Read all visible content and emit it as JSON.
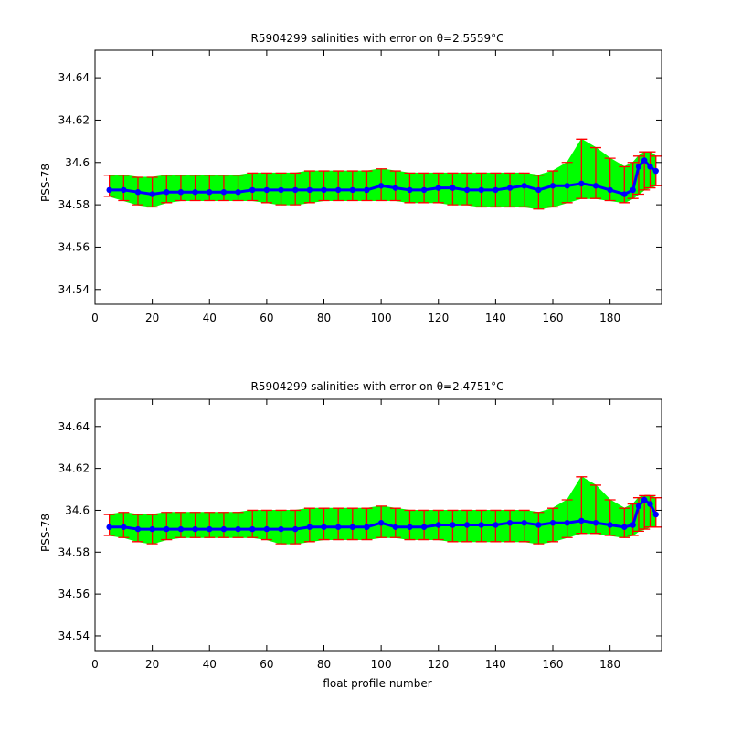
{
  "chart_data": [
    {
      "type": "line",
      "title": "R5904299 salinities with error on θ=2.5559°C",
      "xlabel": "",
      "ylabel": "PSS-78",
      "xlim": [
        0,
        198
      ],
      "ylim": [
        34.533,
        34.653
      ],
      "xticks": [
        0,
        20,
        40,
        60,
        80,
        100,
        120,
        140,
        160,
        180
      ],
      "yticks": [
        "34.54",
        "34.56",
        "34.58",
        "34.6",
        "34.62",
        "34.64"
      ],
      "series_colors": {
        "envelope": "#00ff00",
        "errorbars": "#ff0000",
        "mean": "#0000ff"
      },
      "x": [
        5,
        10,
        15,
        20,
        25,
        30,
        35,
        40,
        45,
        50,
        55,
        60,
        65,
        70,
        75,
        80,
        85,
        90,
        95,
        100,
        105,
        110,
        115,
        120,
        125,
        130,
        135,
        140,
        145,
        150,
        155,
        160,
        165,
        170,
        175,
        180,
        185,
        188,
        190,
        192,
        194,
        196
      ],
      "series": [
        {
          "values": [
            34.587,
            34.587,
            34.586,
            34.585,
            34.586,
            34.586,
            34.586,
            34.586,
            34.586,
            34.586,
            34.587,
            34.587,
            34.587,
            34.587,
            34.587,
            34.587,
            34.587,
            34.587,
            34.587,
            34.589,
            34.588,
            34.587,
            34.587,
            34.588,
            34.588,
            34.587,
            34.587,
            34.587,
            34.588,
            34.589,
            34.587,
            34.589,
            34.589,
            34.59,
            34.589,
            34.587,
            34.585,
            34.587,
            34.598,
            34.601,
            34.598,
            34.596
          ]
        },
        {
          "values": [
            34.584,
            34.582,
            34.58,
            34.579,
            34.581,
            34.582,
            34.582,
            34.582,
            34.582,
            34.582,
            34.582,
            34.581,
            34.58,
            34.58,
            34.581,
            34.582,
            34.582,
            34.582,
            34.582,
            34.582,
            34.582,
            34.581,
            34.581,
            34.581,
            34.58,
            34.58,
            34.579,
            34.579,
            34.579,
            34.579,
            34.578,
            34.579,
            34.581,
            34.583,
            34.583,
            34.582,
            34.581,
            34.583,
            34.585,
            34.587,
            34.588,
            34.589
          ]
        },
        {
          "values": [
            34.594,
            34.594,
            34.593,
            34.593,
            34.594,
            34.594,
            34.594,
            34.594,
            34.594,
            34.594,
            34.595,
            34.595,
            34.595,
            34.595,
            34.596,
            34.596,
            34.596,
            34.596,
            34.596,
            34.597,
            34.596,
            34.595,
            34.595,
            34.595,
            34.595,
            34.595,
            34.595,
            34.595,
            34.595,
            34.595,
            34.594,
            34.596,
            34.6,
            34.611,
            34.607,
            34.602,
            34.598,
            34.6,
            34.603,
            34.605,
            34.605,
            34.603
          ]
        }
      ]
    },
    {
      "type": "line",
      "title": "R5904299 salinities with error on θ=2.4751°C",
      "xlabel": "float profile number",
      "ylabel": "PSS-78",
      "xlim": [
        0,
        198
      ],
      "ylim": [
        34.533,
        34.653
      ],
      "xticks": [
        0,
        20,
        40,
        60,
        80,
        100,
        120,
        140,
        160,
        180
      ],
      "yticks": [
        "34.54",
        "34.56",
        "34.58",
        "34.6",
        "34.62",
        "34.64"
      ],
      "series_colors": {
        "envelope": "#00ff00",
        "errorbars": "#ff0000",
        "mean": "#0000ff"
      },
      "x": [
        5,
        10,
        15,
        20,
        25,
        30,
        35,
        40,
        45,
        50,
        55,
        60,
        65,
        70,
        75,
        80,
        85,
        90,
        95,
        100,
        105,
        110,
        115,
        120,
        125,
        130,
        135,
        140,
        145,
        150,
        155,
        160,
        165,
        170,
        175,
        180,
        185,
        188,
        190,
        192,
        194,
        196
      ],
      "series": [
        {
          "values": [
            34.592,
            34.592,
            34.591,
            34.591,
            34.591,
            34.591,
            34.591,
            34.591,
            34.591,
            34.591,
            34.591,
            34.591,
            34.591,
            34.591,
            34.592,
            34.592,
            34.592,
            34.592,
            34.592,
            34.594,
            34.592,
            34.592,
            34.592,
            34.593,
            34.593,
            34.593,
            34.593,
            34.593,
            34.594,
            34.594,
            34.593,
            34.594,
            34.594,
            34.595,
            34.594,
            34.593,
            34.592,
            34.593,
            34.602,
            34.605,
            34.603,
            34.598
          ]
        },
        {
          "values": [
            34.588,
            34.587,
            34.585,
            34.584,
            34.586,
            34.587,
            34.587,
            34.587,
            34.587,
            34.587,
            34.587,
            34.586,
            34.584,
            34.584,
            34.585,
            34.586,
            34.586,
            34.586,
            34.586,
            34.587,
            34.587,
            34.586,
            34.586,
            34.586,
            34.585,
            34.585,
            34.585,
            34.585,
            34.585,
            34.585,
            34.584,
            34.585,
            34.587,
            34.589,
            34.589,
            34.588,
            34.587,
            34.588,
            34.59,
            34.591,
            34.592,
            34.592
          ]
        },
        {
          "values": [
            34.598,
            34.599,
            34.598,
            34.598,
            34.599,
            34.599,
            34.599,
            34.599,
            34.599,
            34.599,
            34.6,
            34.6,
            34.6,
            34.6,
            34.601,
            34.601,
            34.601,
            34.601,
            34.601,
            34.602,
            34.601,
            34.6,
            34.6,
            34.6,
            34.6,
            34.6,
            34.6,
            34.6,
            34.6,
            34.6,
            34.599,
            34.601,
            34.605,
            34.616,
            34.612,
            34.605,
            34.601,
            34.603,
            34.606,
            34.607,
            34.607,
            34.606
          ]
        }
      ]
    }
  ]
}
